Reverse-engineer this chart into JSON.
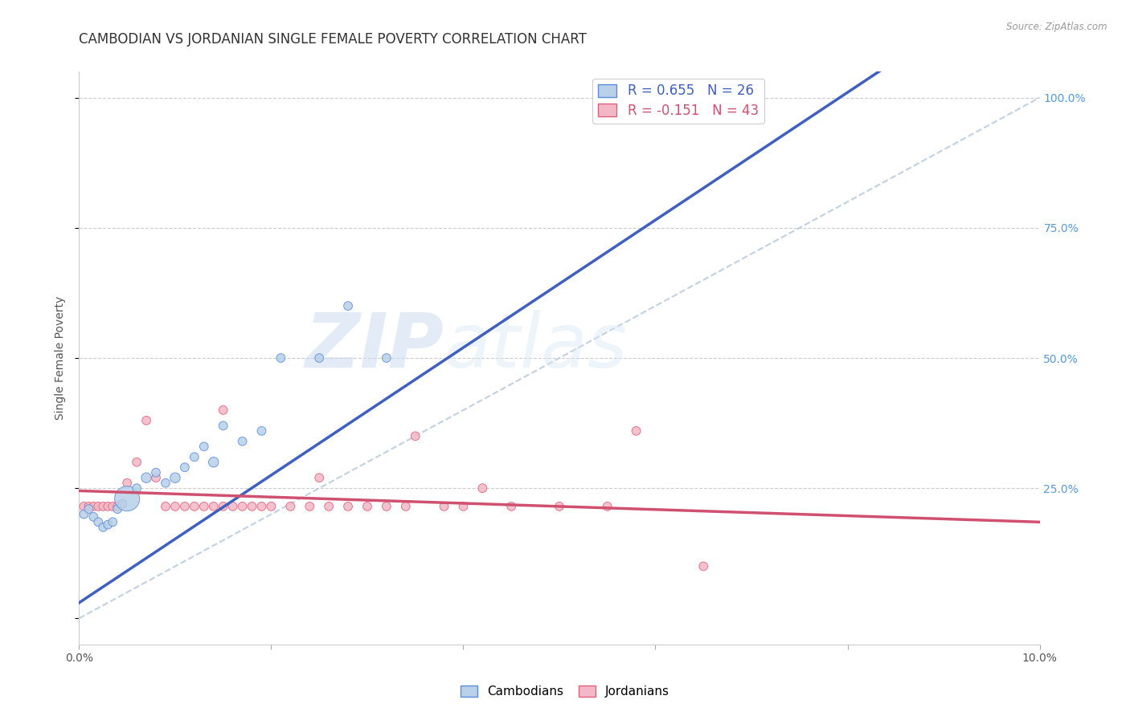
{
  "title": "CAMBODIAN VS JORDANIAN SINGLE FEMALE POVERTY CORRELATION CHART",
  "source": "Source: ZipAtlas.com",
  "ylabel": "Single Female Poverty",
  "xlim": [
    0.0,
    0.1
  ],
  "ylim": [
    -0.05,
    1.05
  ],
  "ytick_positions": [
    0.0,
    0.25,
    0.5,
    0.75,
    1.0
  ],
  "ytick_labels": [
    "",
    "25.0%",
    "50.0%",
    "75.0%",
    "100.0%"
  ],
  "xtick_positions": [
    0.0,
    0.02,
    0.04,
    0.06,
    0.08,
    0.1
  ],
  "xtick_labels": [
    "0.0%",
    "",
    "",
    "",
    "",
    "10.0%"
  ],
  "cambodian_fill": "#b8d0e8",
  "cambodian_edge": "#5b8dd9",
  "jordanian_fill": "#f2b8c6",
  "jordanian_edge": "#e0607a",
  "camb_line_color": "#4060c0",
  "jord_line_color": "#d05070",
  "diagonal_color": "#bbccdd",
  "legend_camb": "R = 0.655   N = 26",
  "legend_jord": "R = -0.151   N = 43",
  "watermark_zip": "ZIP",
  "watermark_atlas": "atlas",
  "camb_line_x0": 0.0,
  "camb_line_y0": 0.03,
  "camb_line_x1": 0.04,
  "camb_line_y1": 0.52,
  "jord_line_x0": 0.0,
  "jord_line_y0": 0.245,
  "jord_line_x1": 0.1,
  "jord_line_y1": 0.185,
  "cambodians_x": [
    0.0005,
    0.001,
    0.0015,
    0.002,
    0.0025,
    0.003,
    0.0035,
    0.004,
    0.0045,
    0.005,
    0.006,
    0.007,
    0.008,
    0.009,
    0.01,
    0.011,
    0.012,
    0.013,
    0.014,
    0.015,
    0.017,
    0.019,
    0.021,
    0.025,
    0.028,
    0.032
  ],
  "cambodians_y": [
    0.2,
    0.21,
    0.195,
    0.185,
    0.175,
    0.18,
    0.185,
    0.21,
    0.22,
    0.23,
    0.25,
    0.27,
    0.28,
    0.26,
    0.27,
    0.29,
    0.31,
    0.33,
    0.3,
    0.37,
    0.34,
    0.36,
    0.5,
    0.5,
    0.6,
    0.5
  ],
  "cambodians_size": [
    60,
    60,
    60,
    60,
    60,
    60,
    60,
    60,
    60,
    500,
    60,
    80,
    60,
    60,
    80,
    60,
    60,
    60,
    80,
    60,
    60,
    60,
    60,
    60,
    60,
    60
  ],
  "jordanians_x": [
    0.0005,
    0.001,
    0.0015,
    0.002,
    0.0025,
    0.003,
    0.0035,
    0.004,
    0.0045,
    0.005,
    0.006,
    0.007,
    0.008,
    0.009,
    0.01,
    0.011,
    0.012,
    0.013,
    0.014,
    0.015,
    0.016,
    0.017,
    0.018,
    0.019,
    0.02,
    0.022,
    0.024,
    0.026,
    0.03,
    0.032,
    0.034,
    0.035,
    0.038,
    0.04,
    0.042,
    0.045,
    0.05,
    0.055,
    0.058,
    0.065,
    0.025,
    0.028,
    0.015
  ],
  "jordanians_y": [
    0.215,
    0.215,
    0.215,
    0.215,
    0.215,
    0.215,
    0.215,
    0.215,
    0.22,
    0.26,
    0.3,
    0.38,
    0.27,
    0.215,
    0.215,
    0.215,
    0.215,
    0.215,
    0.215,
    0.215,
    0.215,
    0.215,
    0.215,
    0.215,
    0.215,
    0.215,
    0.215,
    0.215,
    0.215,
    0.215,
    0.215,
    0.35,
    0.215,
    0.215,
    0.25,
    0.215,
    0.215,
    0.215,
    0.36,
    0.1,
    0.27,
    0.215,
    0.4
  ],
  "jordanians_size": [
    60,
    60,
    60,
    60,
    60,
    60,
    60,
    60,
    60,
    60,
    60,
    60,
    60,
    60,
    60,
    60,
    60,
    60,
    60,
    60,
    60,
    60,
    60,
    60,
    60,
    60,
    60,
    60,
    60,
    60,
    60,
    60,
    60,
    60,
    60,
    60,
    60,
    60,
    60,
    60,
    60,
    60,
    60
  ]
}
